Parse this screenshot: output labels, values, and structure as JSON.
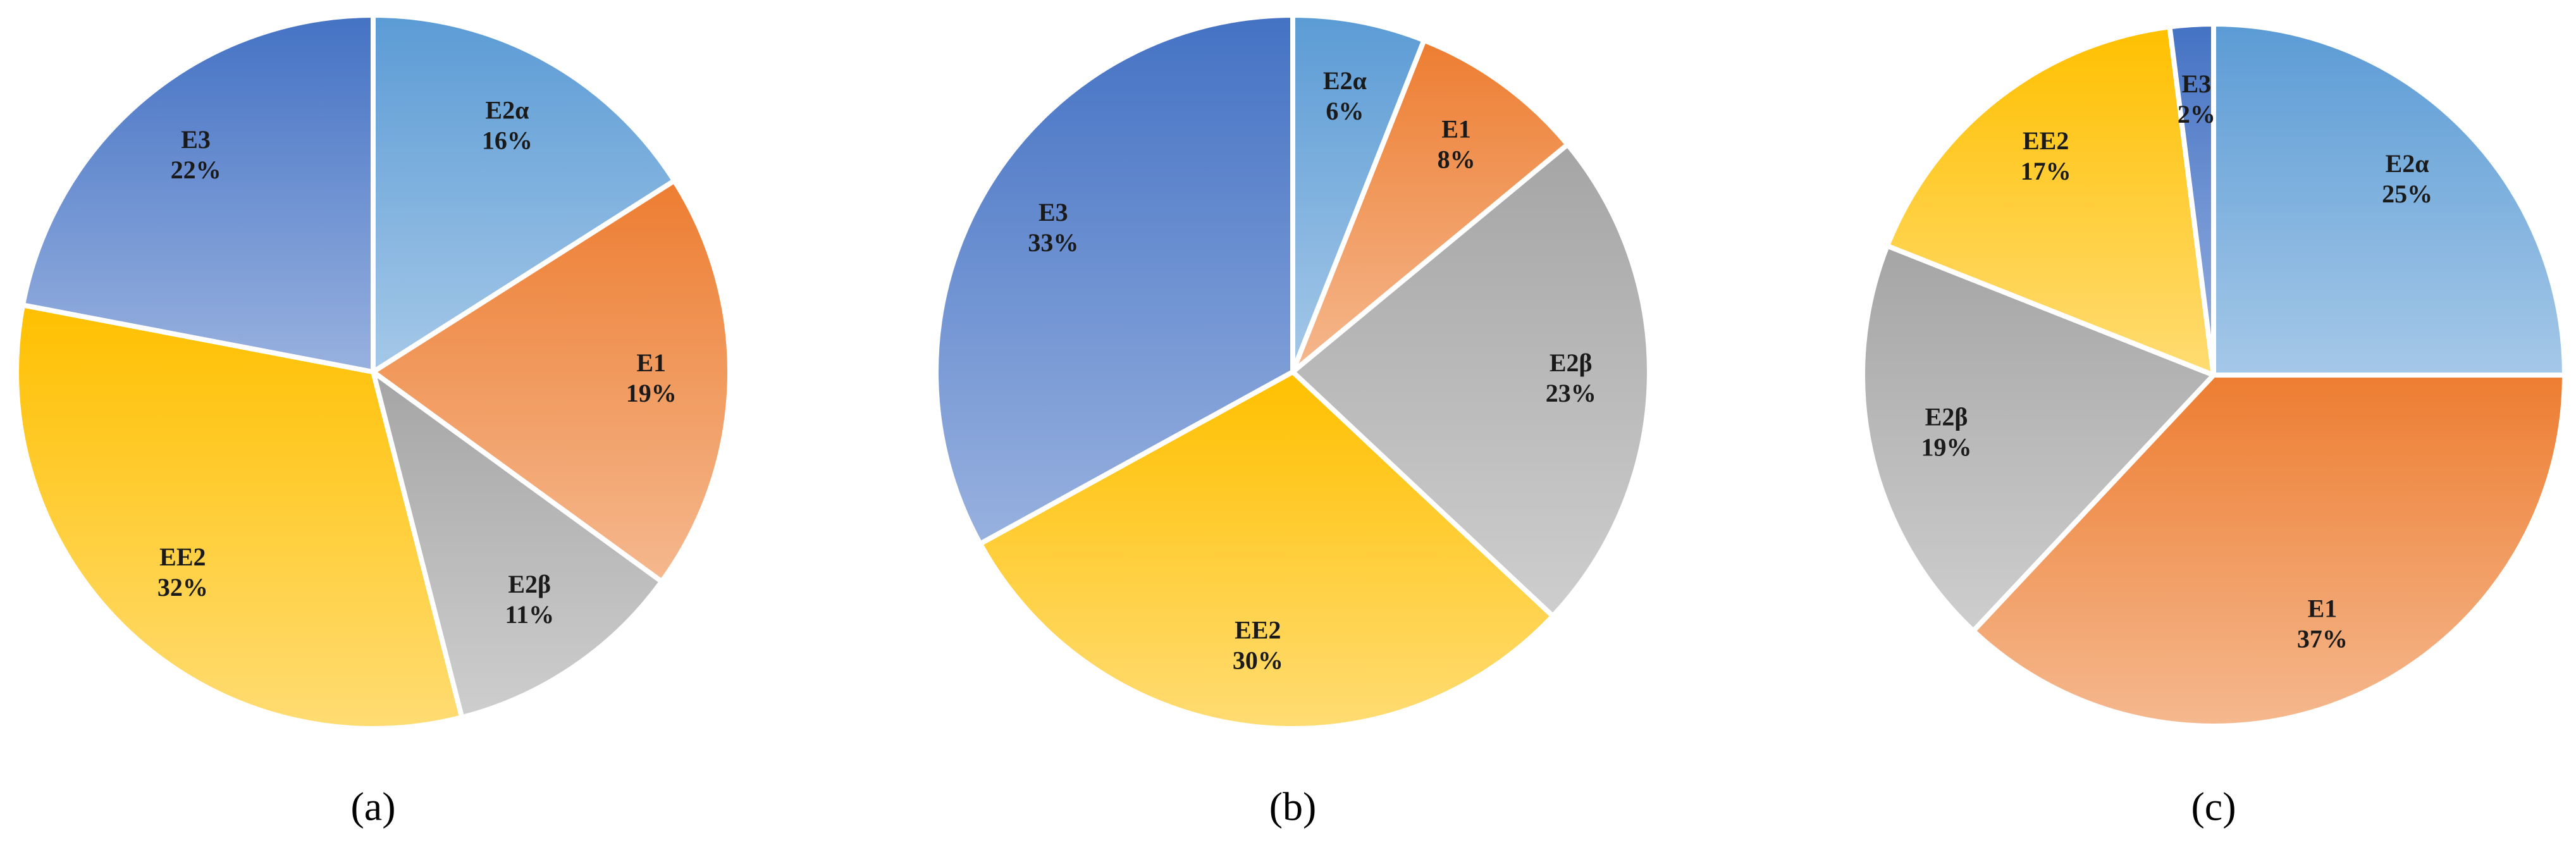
{
  "chart_data": [
    {
      "type": "pie",
      "title": "(a)",
      "categories": [
        "E2α",
        "E1",
        "E2β",
        "EE2",
        "E3"
      ],
      "values": [
        16,
        19,
        11,
        32,
        22
      ],
      "value_labels": [
        "16%",
        "19%",
        "11%",
        "32%",
        "22%"
      ],
      "colors": [
        "#5b9bd5",
        "#ed7d31",
        "#a5a5a5",
        "#ffc000",
        "#4472c4"
      ]
    },
    {
      "type": "pie",
      "title": "(b)",
      "categories": [
        "E2α",
        "E1",
        "E2β",
        "EE2",
        "E3"
      ],
      "values": [
        6,
        8,
        23,
        30,
        33
      ],
      "value_labels": [
        "6%",
        "8%",
        "23%",
        "30%",
        "33%"
      ],
      "colors": [
        "#5b9bd5",
        "#ed7d31",
        "#a5a5a5",
        "#ffc000",
        "#4472c4"
      ]
    },
    {
      "type": "pie",
      "title": "(c)",
      "categories": [
        "E2α",
        "E1",
        "E2β",
        "EE2",
        "E3"
      ],
      "values": [
        25,
        37,
        19,
        17,
        2
      ],
      "value_labels": [
        "25%",
        "37%",
        "19%",
        "17%",
        "2%"
      ],
      "colors": [
        "#5b9bd5",
        "#ed7d31",
        "#a5a5a5",
        "#ffc000",
        "#4472c4"
      ]
    }
  ]
}
